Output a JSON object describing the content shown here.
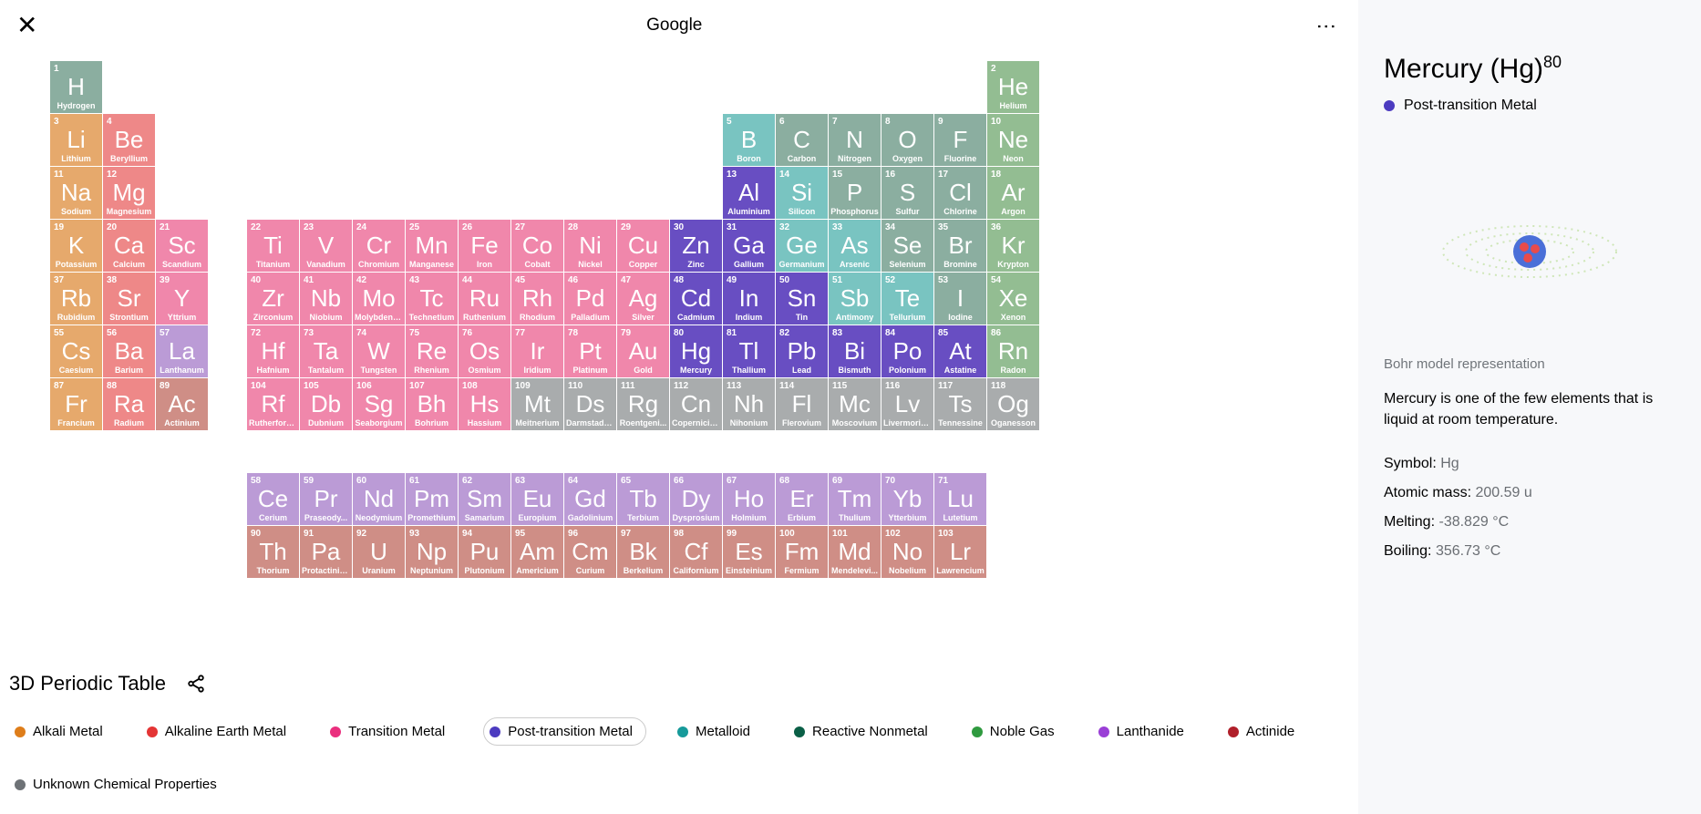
{
  "header": {
    "title": "Google"
  },
  "footer_title": "3D Periodic Table",
  "colors": {
    "alkali": "#e6a96c",
    "alkaline": "#ee8888",
    "transition": "#f087ab",
    "post": "#684ec2",
    "metalloid": "#79c4c1",
    "nonmetal": "#8baea0",
    "noble": "#93bd92",
    "lanth": "#bb9bd6",
    "act": "#cf8e86",
    "unknown": "#a9acad"
  },
  "legend": [
    {
      "key": "alkali",
      "label": "Alkali Metal",
      "dot": "#de7d1a"
    },
    {
      "key": "alkaline",
      "label": "Alkaline Earth Metal",
      "dot": "#e43535"
    },
    {
      "key": "transition",
      "label": "Transition Metal",
      "dot": "#ea2f7e"
    },
    {
      "key": "post",
      "label": "Post-transition Metal",
      "dot": "#4c3bc0",
      "selected": true
    },
    {
      "key": "metalloid",
      "label": "Metalloid",
      "dot": "#169a9a"
    },
    {
      "key": "nonmetal",
      "label": "Reactive Nonmetal",
      "dot": "#0a5f46"
    },
    {
      "key": "noble",
      "label": "Noble Gas",
      "dot": "#2f9a3f"
    },
    {
      "key": "lanth",
      "label": "Lanthanide",
      "dot": "#9a3fd6"
    },
    {
      "key": "act",
      "label": "Actinide",
      "dot": "#b01f2a"
    },
    {
      "key": "unknown",
      "label": "Unknown Chemical Properties",
      "dot": "#6e7276"
    }
  ],
  "detail": {
    "name": "Mercury",
    "symbolDisp": "Hg",
    "num": "80",
    "cat_label": "Post-transition Metal",
    "cat_dot": "#4c3bc0",
    "caption": "Bohr model representation",
    "desc": "Mercury is one of the few elements that is liquid at room temperature.",
    "props": [
      {
        "k": "Symbol:",
        "v": "Hg"
      },
      {
        "k": "Atomic mass:",
        "v": "200.59 u"
      },
      {
        "k": "Melting:",
        "v": "-38.829 °C"
      },
      {
        "k": "Boiling:",
        "v": "356.73 °C"
      }
    ]
  },
  "elements": [
    {
      "n": 1,
      "s": "H",
      "nm": "Hydrogen",
      "c": "nonmetal",
      "r": 0,
      "col": 0
    },
    {
      "n": 2,
      "s": "He",
      "nm": "Helium",
      "c": "noble",
      "r": 0,
      "col": 17
    },
    {
      "n": 3,
      "s": "Li",
      "nm": "Lithium",
      "c": "alkali",
      "r": 1,
      "col": 0
    },
    {
      "n": 4,
      "s": "Be",
      "nm": "Beryllium",
      "c": "alkaline",
      "r": 1,
      "col": 1
    },
    {
      "n": 5,
      "s": "B",
      "nm": "Boron",
      "c": "metalloid",
      "r": 1,
      "col": 12
    },
    {
      "n": 6,
      "s": "C",
      "nm": "Carbon",
      "c": "nonmetal",
      "r": 1,
      "col": 13
    },
    {
      "n": 7,
      "s": "N",
      "nm": "Nitrogen",
      "c": "nonmetal",
      "r": 1,
      "col": 14
    },
    {
      "n": 8,
      "s": "O",
      "nm": "Oxygen",
      "c": "nonmetal",
      "r": 1,
      "col": 15
    },
    {
      "n": 9,
      "s": "F",
      "nm": "Fluorine",
      "c": "nonmetal",
      "r": 1,
      "col": 16
    },
    {
      "n": 10,
      "s": "Ne",
      "nm": "Neon",
      "c": "noble",
      "r": 1,
      "col": 17
    },
    {
      "n": 11,
      "s": "Na",
      "nm": "Sodium",
      "c": "alkali",
      "r": 2,
      "col": 0
    },
    {
      "n": 12,
      "s": "Mg",
      "nm": "Magnesium",
      "c": "alkaline",
      "r": 2,
      "col": 1
    },
    {
      "n": 13,
      "s": "Al",
      "nm": "Aluminium",
      "c": "post",
      "r": 2,
      "col": 12
    },
    {
      "n": 14,
      "s": "Si",
      "nm": "Silicon",
      "c": "metalloid",
      "r": 2,
      "col": 13
    },
    {
      "n": 15,
      "s": "P",
      "nm": "Phosphorus",
      "c": "nonmetal",
      "r": 2,
      "col": 14
    },
    {
      "n": 16,
      "s": "S",
      "nm": "Sulfur",
      "c": "nonmetal",
      "r": 2,
      "col": 15
    },
    {
      "n": 17,
      "s": "Cl",
      "nm": "Chlorine",
      "c": "nonmetal",
      "r": 2,
      "col": 16
    },
    {
      "n": 18,
      "s": "Ar",
      "nm": "Argon",
      "c": "noble",
      "r": 2,
      "col": 17
    },
    {
      "n": 19,
      "s": "K",
      "nm": "Potassium",
      "c": "alkali",
      "r": 3,
      "col": 0
    },
    {
      "n": 20,
      "s": "Ca",
      "nm": "Calcium",
      "c": "alkaline",
      "r": 3,
      "col": 1
    },
    {
      "n": 21,
      "s": "Sc",
      "nm": "Scandium",
      "c": "transition",
      "r": 3,
      "col": 2
    },
    {
      "n": 22,
      "s": "Ti",
      "nm": "Titanium",
      "c": "transition",
      "r": 3,
      "col": 3,
      "off": 1
    },
    {
      "n": 23,
      "s": "V",
      "nm": "Vanadium",
      "c": "transition",
      "r": 3,
      "col": 4,
      "off": 1
    },
    {
      "n": 24,
      "s": "Cr",
      "nm": "Chromium",
      "c": "transition",
      "r": 3,
      "col": 5,
      "off": 1
    },
    {
      "n": 25,
      "s": "Mn",
      "nm": "Manganese",
      "c": "transition",
      "r": 3,
      "col": 6,
      "off": 1
    },
    {
      "n": 26,
      "s": "Fe",
      "nm": "Iron",
      "c": "transition",
      "r": 3,
      "col": 7,
      "off": 1
    },
    {
      "n": 27,
      "s": "Co",
      "nm": "Cobalt",
      "c": "transition",
      "r": 3,
      "col": 8,
      "off": 1
    },
    {
      "n": 28,
      "s": "Ni",
      "nm": "Nickel",
      "c": "transition",
      "r": 3,
      "col": 9,
      "off": 1
    },
    {
      "n": 29,
      "s": "Cu",
      "nm": "Copper",
      "c": "transition",
      "r": 3,
      "col": 10,
      "off": 1
    },
    {
      "n": 30,
      "s": "Zn",
      "nm": "Zinc",
      "c": "post",
      "r": 3,
      "col": 11,
      "off": 1
    },
    {
      "n": 31,
      "s": "Ga",
      "nm": "Gallium",
      "c": "post",
      "r": 3,
      "col": 12
    },
    {
      "n": 32,
      "s": "Ge",
      "nm": "Germanium",
      "c": "metalloid",
      "r": 3,
      "col": 13
    },
    {
      "n": 33,
      "s": "As",
      "nm": "Arsenic",
      "c": "metalloid",
      "r": 3,
      "col": 14
    },
    {
      "n": 34,
      "s": "Se",
      "nm": "Selenium",
      "c": "nonmetal",
      "r": 3,
      "col": 15
    },
    {
      "n": 35,
      "s": "Br",
      "nm": "Bromine",
      "c": "nonmetal",
      "r": 3,
      "col": 16
    },
    {
      "n": 36,
      "s": "Kr",
      "nm": "Krypton",
      "c": "noble",
      "r": 3,
      "col": 17
    },
    {
      "n": 37,
      "s": "Rb",
      "nm": "Rubidium",
      "c": "alkali",
      "r": 4,
      "col": 0
    },
    {
      "n": 38,
      "s": "Sr",
      "nm": "Strontium",
      "c": "alkaline",
      "r": 4,
      "col": 1
    },
    {
      "n": 39,
      "s": "Y",
      "nm": "Yttrium",
      "c": "transition",
      "r": 4,
      "col": 2
    },
    {
      "n": 40,
      "s": "Zr",
      "nm": "Zirconium",
      "c": "transition",
      "r": 4,
      "col": 3,
      "off": 1
    },
    {
      "n": 41,
      "s": "Nb",
      "nm": "Niobium",
      "c": "transition",
      "r": 4,
      "col": 4,
      "off": 1
    },
    {
      "n": 42,
      "s": "Mo",
      "nm": "Molybdenu...",
      "c": "transition",
      "r": 4,
      "col": 5,
      "off": 1
    },
    {
      "n": 43,
      "s": "Tc",
      "nm": "Technetium",
      "c": "transition",
      "r": 4,
      "col": 6,
      "off": 1
    },
    {
      "n": 44,
      "s": "Ru",
      "nm": "Ruthenium",
      "c": "transition",
      "r": 4,
      "col": 7,
      "off": 1
    },
    {
      "n": 45,
      "s": "Rh",
      "nm": "Rhodium",
      "c": "transition",
      "r": 4,
      "col": 8,
      "off": 1
    },
    {
      "n": 46,
      "s": "Pd",
      "nm": "Palladium",
      "c": "transition",
      "r": 4,
      "col": 9,
      "off": 1
    },
    {
      "n": 47,
      "s": "Ag",
      "nm": "Silver",
      "c": "transition",
      "r": 4,
      "col": 10,
      "off": 1
    },
    {
      "n": 48,
      "s": "Cd",
      "nm": "Cadmium",
      "c": "post",
      "r": 4,
      "col": 11,
      "off": 1
    },
    {
      "n": 49,
      "s": "In",
      "nm": "Indium",
      "c": "post",
      "r": 4,
      "col": 12
    },
    {
      "n": 50,
      "s": "Sn",
      "nm": "Tin",
      "c": "post",
      "r": 4,
      "col": 13
    },
    {
      "n": 51,
      "s": "Sb",
      "nm": "Antimony",
      "c": "metalloid",
      "r": 4,
      "col": 14
    },
    {
      "n": 52,
      "s": "Te",
      "nm": "Tellurium",
      "c": "metalloid",
      "r": 4,
      "col": 15
    },
    {
      "n": 53,
      "s": "I",
      "nm": "Iodine",
      "c": "nonmetal",
      "r": 4,
      "col": 16
    },
    {
      "n": 54,
      "s": "Xe",
      "nm": "Xenon",
      "c": "noble",
      "r": 4,
      "col": 17
    },
    {
      "n": 55,
      "s": "Cs",
      "nm": "Caesium",
      "c": "alkali",
      "r": 5,
      "col": 0
    },
    {
      "n": 56,
      "s": "Ba",
      "nm": "Barium",
      "c": "alkaline",
      "r": 5,
      "col": 1
    },
    {
      "n": 57,
      "s": "La",
      "nm": "Lanthanum",
      "c": "lanth",
      "r": 5,
      "col": 2
    },
    {
      "n": 72,
      "s": "Hf",
      "nm": "Hafnium",
      "c": "transition",
      "r": 5,
      "col": 3,
      "off": 1
    },
    {
      "n": 73,
      "s": "Ta",
      "nm": "Tantalum",
      "c": "transition",
      "r": 5,
      "col": 4,
      "off": 1
    },
    {
      "n": 74,
      "s": "W",
      "nm": "Tungsten",
      "c": "transition",
      "r": 5,
      "col": 5,
      "off": 1
    },
    {
      "n": 75,
      "s": "Re",
      "nm": "Rhenium",
      "c": "transition",
      "r": 5,
      "col": 6,
      "off": 1
    },
    {
      "n": 76,
      "s": "Os",
      "nm": "Osmium",
      "c": "transition",
      "r": 5,
      "col": 7,
      "off": 1
    },
    {
      "n": 77,
      "s": "Ir",
      "nm": "Iridium",
      "c": "transition",
      "r": 5,
      "col": 8,
      "off": 1
    },
    {
      "n": 78,
      "s": "Pt",
      "nm": "Platinum",
      "c": "transition",
      "r": 5,
      "col": 9,
      "off": 1
    },
    {
      "n": 79,
      "s": "Au",
      "nm": "Gold",
      "c": "transition",
      "r": 5,
      "col": 10,
      "off": 1
    },
    {
      "n": 80,
      "s": "Hg",
      "nm": "Mercury",
      "c": "post",
      "r": 5,
      "col": 11,
      "off": 1
    },
    {
      "n": 81,
      "s": "Tl",
      "nm": "Thallium",
      "c": "post",
      "r": 5,
      "col": 12
    },
    {
      "n": 82,
      "s": "Pb",
      "nm": "Lead",
      "c": "post",
      "r": 5,
      "col": 13
    },
    {
      "n": 83,
      "s": "Bi",
      "nm": "Bismuth",
      "c": "post",
      "r": 5,
      "col": 14
    },
    {
      "n": 84,
      "s": "Po",
      "nm": "Polonium",
      "c": "post",
      "r": 5,
      "col": 15
    },
    {
      "n": 85,
      "s": "At",
      "nm": "Astatine",
      "c": "post",
      "r": 5,
      "col": 16
    },
    {
      "n": 86,
      "s": "Rn",
      "nm": "Radon",
      "c": "noble",
      "r": 5,
      "col": 17
    },
    {
      "n": 87,
      "s": "Fr",
      "nm": "Francium",
      "c": "alkali",
      "r": 6,
      "col": 0
    },
    {
      "n": 88,
      "s": "Ra",
      "nm": "Radium",
      "c": "alkaline",
      "r": 6,
      "col": 1
    },
    {
      "n": 89,
      "s": "Ac",
      "nm": "Actinium",
      "c": "act",
      "r": 6,
      "col": 2
    },
    {
      "n": 104,
      "s": "Rf",
      "nm": "Rutherford...",
      "c": "transition",
      "r": 6,
      "col": 3,
      "off": 1
    },
    {
      "n": 105,
      "s": "Db",
      "nm": "Dubnium",
      "c": "transition",
      "r": 6,
      "col": 4,
      "off": 1
    },
    {
      "n": 106,
      "s": "Sg",
      "nm": "Seaborgium",
      "c": "transition",
      "r": 6,
      "col": 5,
      "off": 1
    },
    {
      "n": 107,
      "s": "Bh",
      "nm": "Bohrium",
      "c": "transition",
      "r": 6,
      "col": 6,
      "off": 1
    },
    {
      "n": 108,
      "s": "Hs",
      "nm": "Hassium",
      "c": "transition",
      "r": 6,
      "col": 7,
      "off": 1
    },
    {
      "n": 109,
      "s": "Mt",
      "nm": "Meitnerium",
      "c": "unknown",
      "r": 6,
      "col": 8,
      "off": 1
    },
    {
      "n": 110,
      "s": "Ds",
      "nm": "Darmstadti...",
      "c": "unknown",
      "r": 6,
      "col": 9,
      "off": 1
    },
    {
      "n": 111,
      "s": "Rg",
      "nm": "Roentgeni...",
      "c": "unknown",
      "r": 6,
      "col": 10,
      "off": 1
    },
    {
      "n": 112,
      "s": "Cn",
      "nm": "Copernicium",
      "c": "unknown",
      "r": 6,
      "col": 11,
      "off": 1
    },
    {
      "n": 113,
      "s": "Nh",
      "nm": "Nihonium",
      "c": "unknown",
      "r": 6,
      "col": 12
    },
    {
      "n": 114,
      "s": "Fl",
      "nm": "Flerovium",
      "c": "unknown",
      "r": 6,
      "col": 13
    },
    {
      "n": 115,
      "s": "Mc",
      "nm": "Moscovium",
      "c": "unknown",
      "r": 6,
      "col": 14
    },
    {
      "n": 116,
      "s": "Lv",
      "nm": "Livermorium",
      "c": "unknown",
      "r": 6,
      "col": 15
    },
    {
      "n": 117,
      "s": "Ts",
      "nm": "Tennessine",
      "c": "unknown",
      "r": 6,
      "col": 16
    },
    {
      "n": 118,
      "s": "Og",
      "nm": "Oganesson",
      "c": "unknown",
      "r": 6,
      "col": 17
    },
    {
      "n": 58,
      "s": "Ce",
      "nm": "Cerium",
      "c": "lanth",
      "r": 8,
      "col": 3,
      "off": 1
    },
    {
      "n": 59,
      "s": "Pr",
      "nm": "Praseody...",
      "c": "lanth",
      "r": 8,
      "col": 4,
      "off": 1
    },
    {
      "n": 60,
      "s": "Nd",
      "nm": "Neodymium",
      "c": "lanth",
      "r": 8,
      "col": 5,
      "off": 1
    },
    {
      "n": 61,
      "s": "Pm",
      "nm": "Promethium",
      "c": "lanth",
      "r": 8,
      "col": 6,
      "off": 1
    },
    {
      "n": 62,
      "s": "Sm",
      "nm": "Samarium",
      "c": "lanth",
      "r": 8,
      "col": 7,
      "off": 1
    },
    {
      "n": 63,
      "s": "Eu",
      "nm": "Europium",
      "c": "lanth",
      "r": 8,
      "col": 8,
      "off": 1
    },
    {
      "n": 64,
      "s": "Gd",
      "nm": "Gadolinium",
      "c": "lanth",
      "r": 8,
      "col": 9,
      "off": 1
    },
    {
      "n": 65,
      "s": "Tb",
      "nm": "Terbium",
      "c": "lanth",
      "r": 8,
      "col": 10,
      "off": 1
    },
    {
      "n": 66,
      "s": "Dy",
      "nm": "Dysprosium",
      "c": "lanth",
      "r": 8,
      "col": 11,
      "off": 1
    },
    {
      "n": 67,
      "s": "Ho",
      "nm": "Holmium",
      "c": "lanth",
      "r": 8,
      "col": 12
    },
    {
      "n": 68,
      "s": "Er",
      "nm": "Erbium",
      "c": "lanth",
      "r": 8,
      "col": 13
    },
    {
      "n": 69,
      "s": "Tm",
      "nm": "Thulium",
      "c": "lanth",
      "r": 8,
      "col": 14
    },
    {
      "n": 70,
      "s": "Yb",
      "nm": "Ytterbium",
      "c": "lanth",
      "r": 8,
      "col": 15
    },
    {
      "n": 71,
      "s": "Lu",
      "nm": "Lutetium",
      "c": "lanth",
      "r": 8,
      "col": 16
    },
    {
      "n": 90,
      "s": "Th",
      "nm": "Thorium",
      "c": "act",
      "r": 9,
      "col": 3,
      "off": 1
    },
    {
      "n": 91,
      "s": "Pa",
      "nm": "Protactiniu...",
      "c": "act",
      "r": 9,
      "col": 4,
      "off": 1
    },
    {
      "n": 92,
      "s": "U",
      "nm": "Uranium",
      "c": "act",
      "r": 9,
      "col": 5,
      "off": 1
    },
    {
      "n": 93,
      "s": "Np",
      "nm": "Neptunium",
      "c": "act",
      "r": 9,
      "col": 6,
      "off": 1
    },
    {
      "n": 94,
      "s": "Pu",
      "nm": "Plutonium",
      "c": "act",
      "r": 9,
      "col": 7,
      "off": 1
    },
    {
      "n": 95,
      "s": "Am",
      "nm": "Americium",
      "c": "act",
      "r": 9,
      "col": 8,
      "off": 1
    },
    {
      "n": 96,
      "s": "Cm",
      "nm": "Curium",
      "c": "act",
      "r": 9,
      "col": 9,
      "off": 1
    },
    {
      "n": 97,
      "s": "Bk",
      "nm": "Berkelium",
      "c": "act",
      "r": 9,
      "col": 10,
      "off": 1
    },
    {
      "n": 98,
      "s": "Cf",
      "nm": "Californium",
      "c": "act",
      "r": 9,
      "col": 11,
      "off": 1
    },
    {
      "n": 99,
      "s": "Es",
      "nm": "Einsteinium",
      "c": "act",
      "r": 9,
      "col": 12
    },
    {
      "n": 100,
      "s": "Fm",
      "nm": "Fermium",
      "c": "act",
      "r": 9,
      "col": 13
    },
    {
      "n": 101,
      "s": "Md",
      "nm": "Mendelevi...",
      "c": "act",
      "r": 9,
      "col": 14
    },
    {
      "n": 102,
      "s": "No",
      "nm": "Nobelium",
      "c": "act",
      "r": 9,
      "col": 15
    },
    {
      "n": 103,
      "s": "Lr",
      "nm": "Lawrencium",
      "c": "act",
      "r": 9,
      "col": 16
    }
  ]
}
